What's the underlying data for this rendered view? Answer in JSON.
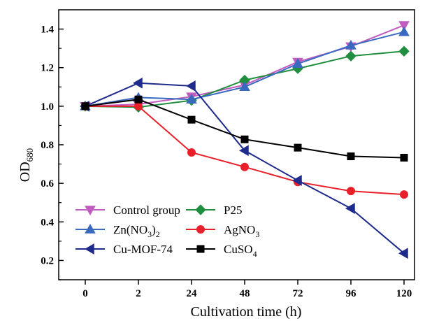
{
  "chart_data": {
    "type": "line",
    "title": "",
    "xlabel": "Cultivation time (h)",
    "ylabel": {
      "main": "OD",
      "sub": "680"
    },
    "categories": [
      "0",
      "2",
      "24",
      "48",
      "72",
      "96",
      "120"
    ],
    "ylim": [
      0.1,
      1.5
    ],
    "yticks": [
      0.2,
      0.4,
      0.6,
      0.8,
      1.0,
      1.2,
      1.4
    ],
    "ytick_labels": [
      "0.2",
      "0.4",
      "0.6",
      "0.8",
      "1.0",
      "1.2",
      "1.4"
    ],
    "grid": false,
    "legend_position": "bottom-left",
    "series": [
      {
        "key": "control",
        "name": "Control group",
        "color": "#c05cc0",
        "marker": "triangle-down",
        "values": [
          1.0,
          1.01,
          1.05,
          1.11,
          1.23,
          1.31,
          1.42
        ]
      },
      {
        "key": "p25",
        "name": "P25",
        "color": "#1f8f3f",
        "marker": "diamond",
        "values": [
          1.0,
          0.995,
          1.03,
          1.135,
          1.195,
          1.26,
          1.285
        ]
      },
      {
        "key": "zn",
        "name": "Zn(NO3)2",
        "color": "#3a6ac0",
        "marker": "triangle-up",
        "values": [
          1.0,
          1.045,
          1.035,
          1.1,
          1.22,
          1.315,
          1.385
        ]
      },
      {
        "key": "ag",
        "name": "AgNO3",
        "color": "#e8202a",
        "marker": "circle",
        "values": [
          1.0,
          1.0,
          0.76,
          0.685,
          0.607,
          0.56,
          0.542
        ]
      },
      {
        "key": "cumof",
        "name": "Cu-MOF-74",
        "color": "#1e2b8c",
        "marker": "triangle-left",
        "values": [
          1.0,
          1.12,
          1.105,
          0.77,
          0.615,
          0.47,
          0.237
        ]
      },
      {
        "key": "cuso4",
        "name": "CuSO4",
        "color": "#000000",
        "marker": "square",
        "values": [
          1.0,
          1.035,
          0.93,
          0.828,
          0.785,
          0.74,
          0.733
        ]
      }
    ],
    "legend": {
      "items": [
        {
          "series": "control",
          "parts": [
            "Control group"
          ]
        },
        {
          "series": "p25",
          "parts": [
            "P25"
          ]
        },
        {
          "series": "zn",
          "parts": [
            "Zn(NO",
            "3",
            ")",
            "2"
          ]
        },
        {
          "series": "ag",
          "parts": [
            "AgNO",
            "3"
          ]
        },
        {
          "series": "cumof",
          "parts": [
            "Cu-MOF-74"
          ]
        },
        {
          "series": "cuso4",
          "parts": [
            "CuSO",
            "4"
          ]
        }
      ]
    }
  }
}
